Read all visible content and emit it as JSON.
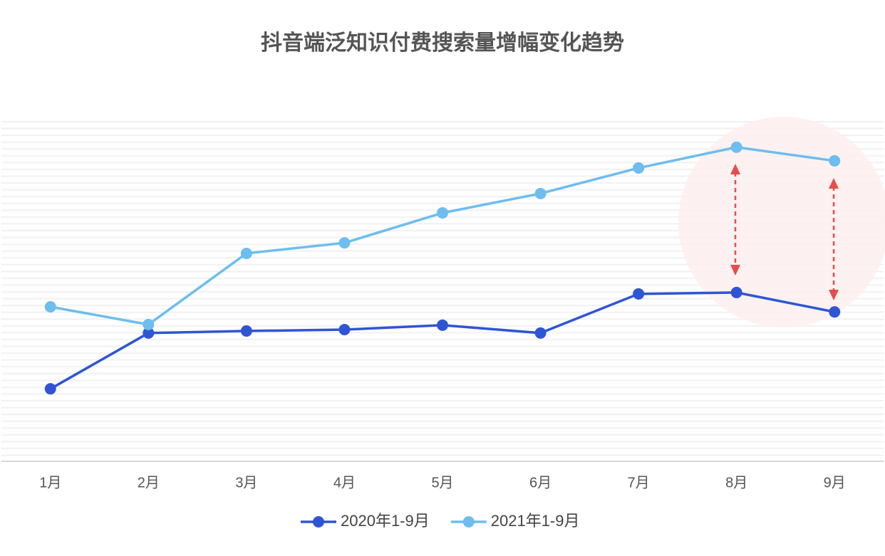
{
  "chart_data": {
    "type": "line",
    "title": "抖音端泛知识付费搜索量增幅变化趋势",
    "categories": [
      "1月",
      "2月",
      "3月",
      "4月",
      "5月",
      "6月",
      "7月",
      "8月",
      "9月"
    ],
    "series": [
      {
        "name": "2020年1-9月",
        "color": "#2f55d4",
        "values": [
          21.3,
          37.7,
          38.3,
          38.7,
          40.0,
          37.7,
          49.2,
          49.6,
          43.9
        ]
      },
      {
        "name": "2021年1-9月",
        "color": "#6dbdf0",
        "values": [
          45.4,
          40.2,
          61.1,
          64.2,
          73.0,
          78.7,
          86.2,
          92.3,
          88.3
        ]
      }
    ],
    "ylim": [
      0,
      100
    ],
    "legend": "bottom"
  }
}
